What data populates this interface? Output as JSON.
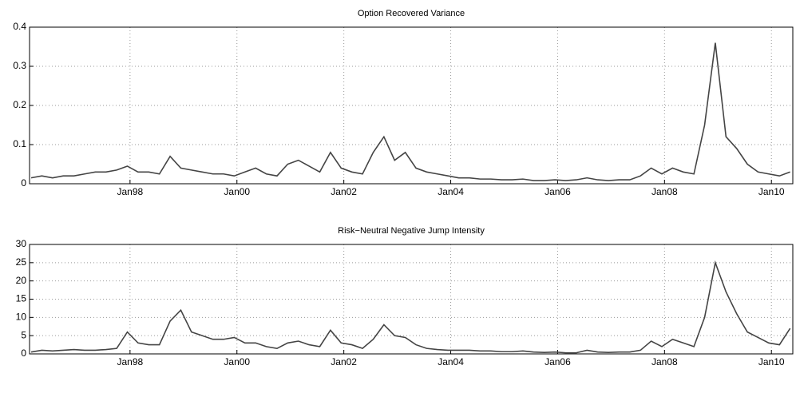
{
  "chart_data": [
    {
      "type": "line",
      "title": "Option Recovered Variance",
      "color": "#444444",
      "grid": true,
      "xlim": [
        1996.12,
        2010.4
      ],
      "ylim": [
        0,
        0.4
      ],
      "yticks": [
        0,
        0.1,
        0.2,
        0.3,
        0.4
      ],
      "xticks": [
        {
          "value": 1998,
          "label": "Jan98"
        },
        {
          "value": 2000,
          "label": "Jan00"
        },
        {
          "value": 2002,
          "label": "Jan02"
        },
        {
          "value": 2004,
          "label": "Jan04"
        },
        {
          "value": 2006,
          "label": "Jan06"
        },
        {
          "value": 2008,
          "label": "Jan08"
        },
        {
          "value": 2010,
          "label": "Jan10"
        }
      ],
      "x": [
        1996.15,
        1996.35,
        1996.55,
        1996.75,
        1996.95,
        1997.15,
        1997.35,
        1997.55,
        1997.75,
        1997.95,
        1998.15,
        1998.35,
        1998.55,
        1998.75,
        1998.95,
        1999.15,
        1999.35,
        1999.55,
        1999.75,
        1999.95,
        2000.15,
        2000.35,
        2000.55,
        2000.75,
        2000.95,
        2001.15,
        2001.35,
        2001.55,
        2001.75,
        2001.95,
        2002.15,
        2002.35,
        2002.55,
        2002.75,
        2002.95,
        2003.15,
        2003.35,
        2003.55,
        2003.75,
        2003.95,
        2004.15,
        2004.35,
        2004.55,
        2004.75,
        2004.95,
        2005.15,
        2005.35,
        2005.55,
        2005.75,
        2005.95,
        2006.15,
        2006.35,
        2006.55,
        2006.75,
        2006.95,
        2007.15,
        2007.35,
        2007.55,
        2007.75,
        2007.95,
        2008.15,
        2008.35,
        2008.55,
        2008.75,
        2008.95,
        2009.15,
        2009.35,
        2009.55,
        2009.75,
        2009.95,
        2010.15,
        2010.35
      ],
      "values": [
        0.015,
        0.02,
        0.015,
        0.02,
        0.02,
        0.025,
        0.03,
        0.03,
        0.035,
        0.045,
        0.03,
        0.03,
        0.025,
        0.07,
        0.04,
        0.035,
        0.03,
        0.025,
        0.025,
        0.02,
        0.03,
        0.04,
        0.025,
        0.02,
        0.05,
        0.06,
        0.045,
        0.03,
        0.08,
        0.04,
        0.03,
        0.025,
        0.08,
        0.12,
        0.06,
        0.08,
        0.04,
        0.03,
        0.025,
        0.02,
        0.015,
        0.015,
        0.012,
        0.012,
        0.01,
        0.01,
        0.012,
        0.008,
        0.008,
        0.01,
        0.008,
        0.01,
        0.015,
        0.01,
        0.008,
        0.01,
        0.01,
        0.02,
        0.04,
        0.025,
        0.04,
        0.03,
        0.025,
        0.15,
        0.36,
        0.12,
        0.09,
        0.05,
        0.03,
        0.025,
        0.02,
        0.03
      ]
    },
    {
      "type": "line",
      "title": "Risk−Neutral Negative Jump Intensity",
      "color": "#444444",
      "grid": true,
      "xlim": [
        1996.12,
        2010.4
      ],
      "ylim": [
        0,
        30
      ],
      "yticks": [
        0,
        5,
        10,
        15,
        20,
        25,
        30
      ],
      "xticks": [
        {
          "value": 1998,
          "label": "Jan98"
        },
        {
          "value": 2000,
          "label": "Jan00"
        },
        {
          "value": 2002,
          "label": "Jan02"
        },
        {
          "value": 2004,
          "label": "Jan04"
        },
        {
          "value": 2006,
          "label": "Jan06"
        },
        {
          "value": 2008,
          "label": "Jan08"
        },
        {
          "value": 2010,
          "label": "Jan10"
        }
      ],
      "x": [
        1996.15,
        1996.35,
        1996.55,
        1996.75,
        1996.95,
        1997.15,
        1997.35,
        1997.55,
        1997.75,
        1997.95,
        1998.15,
        1998.35,
        1998.55,
        1998.75,
        1998.95,
        1999.15,
        1999.35,
        1999.55,
        1999.75,
        1999.95,
        2000.15,
        2000.35,
        2000.55,
        2000.75,
        2000.95,
        2001.15,
        2001.35,
        2001.55,
        2001.75,
        2001.95,
        2002.15,
        2002.35,
        2002.55,
        2002.75,
        2002.95,
        2003.15,
        2003.35,
        2003.55,
        2003.75,
        2003.95,
        2004.15,
        2004.35,
        2004.55,
        2004.75,
        2004.95,
        2005.15,
        2005.35,
        2005.55,
        2005.75,
        2005.95,
        2006.15,
        2006.35,
        2006.55,
        2006.75,
        2006.95,
        2007.15,
        2007.35,
        2007.55,
        2007.75,
        2007.95,
        2008.15,
        2008.35,
        2008.55,
        2008.75,
        2008.95,
        2009.15,
        2009.35,
        2009.55,
        2009.75,
        2009.95,
        2010.15,
        2010.35
      ],
      "values": [
        0.5,
        1,
        0.8,
        1,
        1.2,
        1,
        1,
        1.2,
        1.5,
        6,
        3,
        2.5,
        2.5,
        9,
        12,
        6,
        5,
        4,
        4,
        4.5,
        3,
        3,
        2,
        1.5,
        3,
        3.5,
        2.5,
        2,
        6.5,
        3,
        2.5,
        1.5,
        4,
        8,
        5,
        4.5,
        2.5,
        1.5,
        1.2,
        1,
        1,
        1,
        0.8,
        0.8,
        0.6,
        0.6,
        0.8,
        0.5,
        0.4,
        0.5,
        0.3,
        0.3,
        1,
        0.5,
        0.4,
        0.5,
        0.5,
        1,
        3.5,
        2,
        4,
        3,
        2,
        10,
        25,
        17,
        11,
        6,
        4.5,
        3,
        2.5,
        7
      ]
    }
  ]
}
